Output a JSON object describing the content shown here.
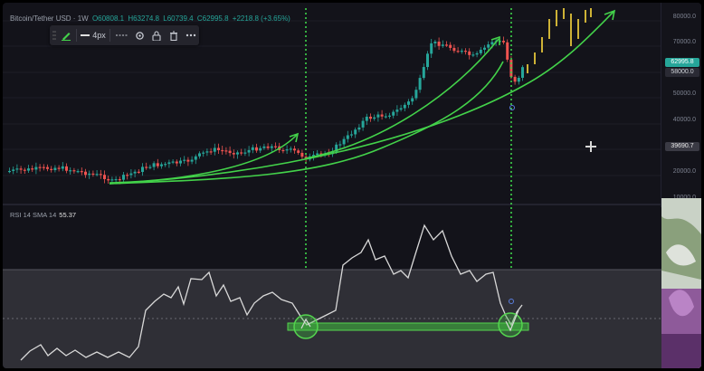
{
  "symbol": {
    "name": "Bitcoin/Tether USD · 1W",
    "open": "O60808.1",
    "high": "H63274.8",
    "low": "L60739.4",
    "close": "C62995.8",
    "change": "+2218.8 (+3.65%)"
  },
  "toolbar": {
    "pencil_icon": "pencil-icon",
    "line_width_label": "4px",
    "icons": [
      "line-style-icon",
      "settings-gear-icon",
      "lock-icon",
      "trash-icon",
      "more-dots-icon"
    ]
  },
  "price_axis": {
    "ticks": [
      "80000.0",
      "70000.0",
      "60000.0",
      "50000.0",
      "40000.0",
      "30000.0",
      "20000.0",
      "10000.0"
    ],
    "current_price": "62995.8",
    "secondary_price": "58000.0",
    "crosshair_price": "39690.7"
  },
  "rsi": {
    "legend_label": "RSI 14 SMA 14",
    "value": "55.37"
  },
  "colors": {
    "up": "#26a69a",
    "down": "#ef5350",
    "projection": "#e3c43a",
    "trend": "#43d24a",
    "cycle_line": "#3ed64b",
    "rsi_line": "#d8d8d8",
    "background": "#13131a"
  }
}
